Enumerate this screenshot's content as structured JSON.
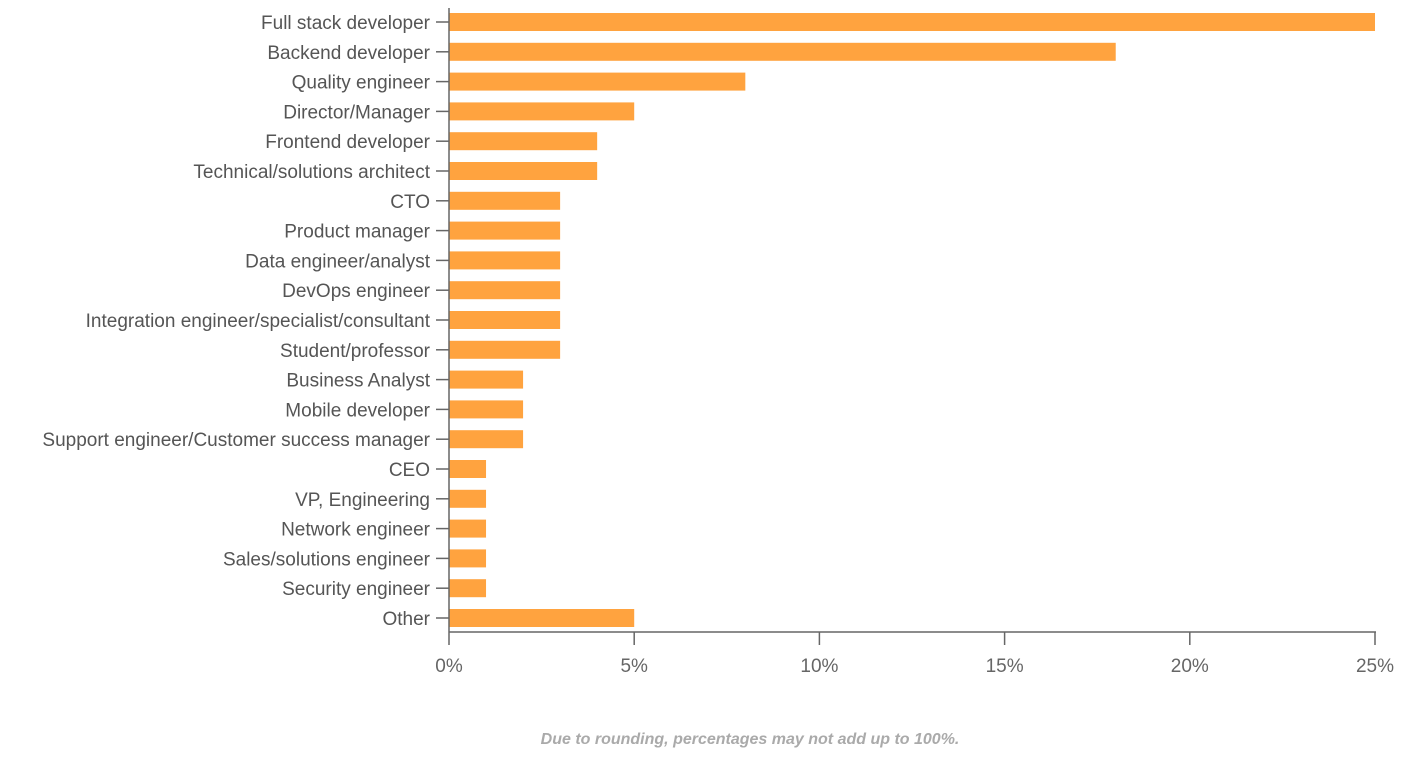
{
  "chart_data": {
    "type": "bar",
    "orientation": "horizontal",
    "categories": [
      "Full stack developer",
      "Backend developer",
      "Quality engineer",
      "Director/Manager",
      "Frontend developer",
      "Technical/solutions architect",
      "CTO",
      "Product manager",
      "Data engineer/analyst",
      "DevOps engineer",
      "Integration engineer/specialist/consultant",
      "Student/professor",
      "Business Analyst",
      "Mobile developer",
      "Support engineer/Customer success manager",
      "CEO",
      "VP, Engineering",
      "Network engineer",
      "Sales/solutions engineer",
      "Security engineer",
      "Other"
    ],
    "values": [
      25,
      18,
      8,
      5,
      4,
      4,
      3,
      3,
      3,
      3,
      3,
      3,
      2,
      2,
      2,
      1,
      1,
      1,
      1,
      1,
      5
    ],
    "xlim": [
      0,
      25
    ],
    "xticks": [
      0,
      5,
      10,
      15,
      20,
      25
    ],
    "xtick_labels": [
      "0%",
      "5%",
      "10%",
      "15%",
      "20%",
      "25%"
    ],
    "unit": "%",
    "grid": false,
    "color": "#FFA33F",
    "title": "",
    "xlabel": "",
    "ylabel": ""
  },
  "footnote": "Due to rounding, percentages may not add up to 100%."
}
